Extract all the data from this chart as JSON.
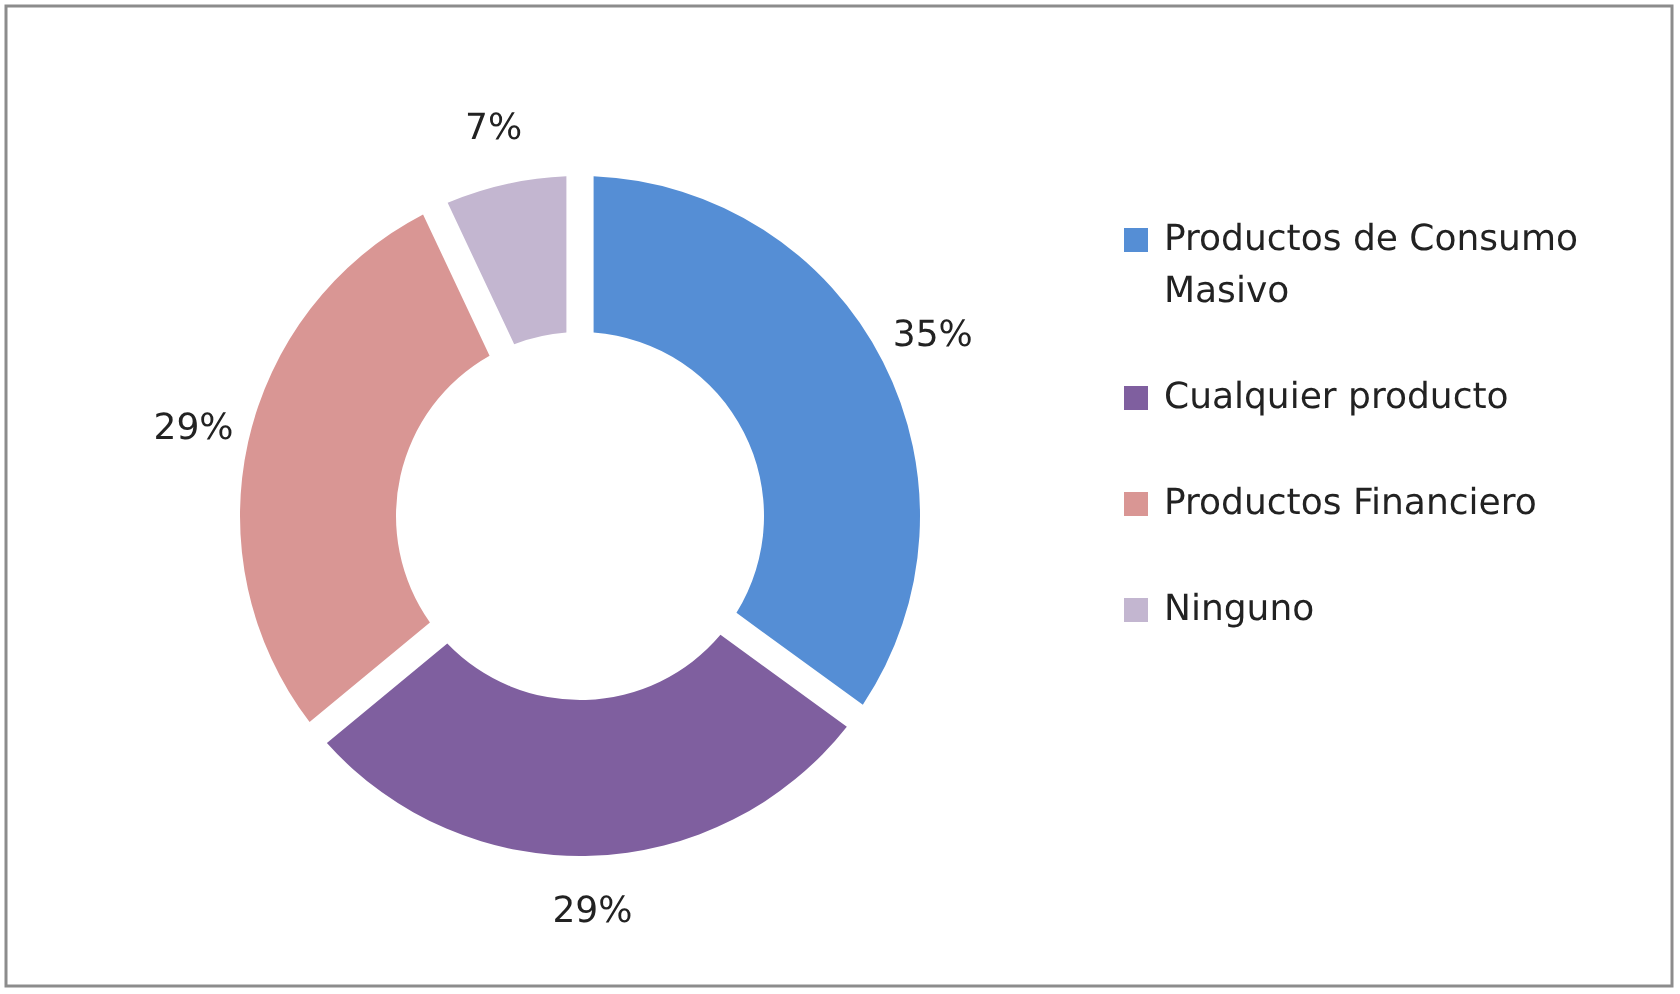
{
  "chart_data": {
    "type": "donut",
    "categories": [
      "Productos de Consumo Masivo",
      "Cualquier producto",
      "Productos Financiero",
      "Ninguno"
    ],
    "values": [
      35,
      29,
      29,
      7
    ],
    "colors": [
      "#558ed5",
      "#7f5f9f",
      "#d99694",
      "#c3b6d0"
    ],
    "value_labels": [
      "35%",
      "29%",
      "29%",
      "7%"
    ],
    "legend": "right"
  }
}
